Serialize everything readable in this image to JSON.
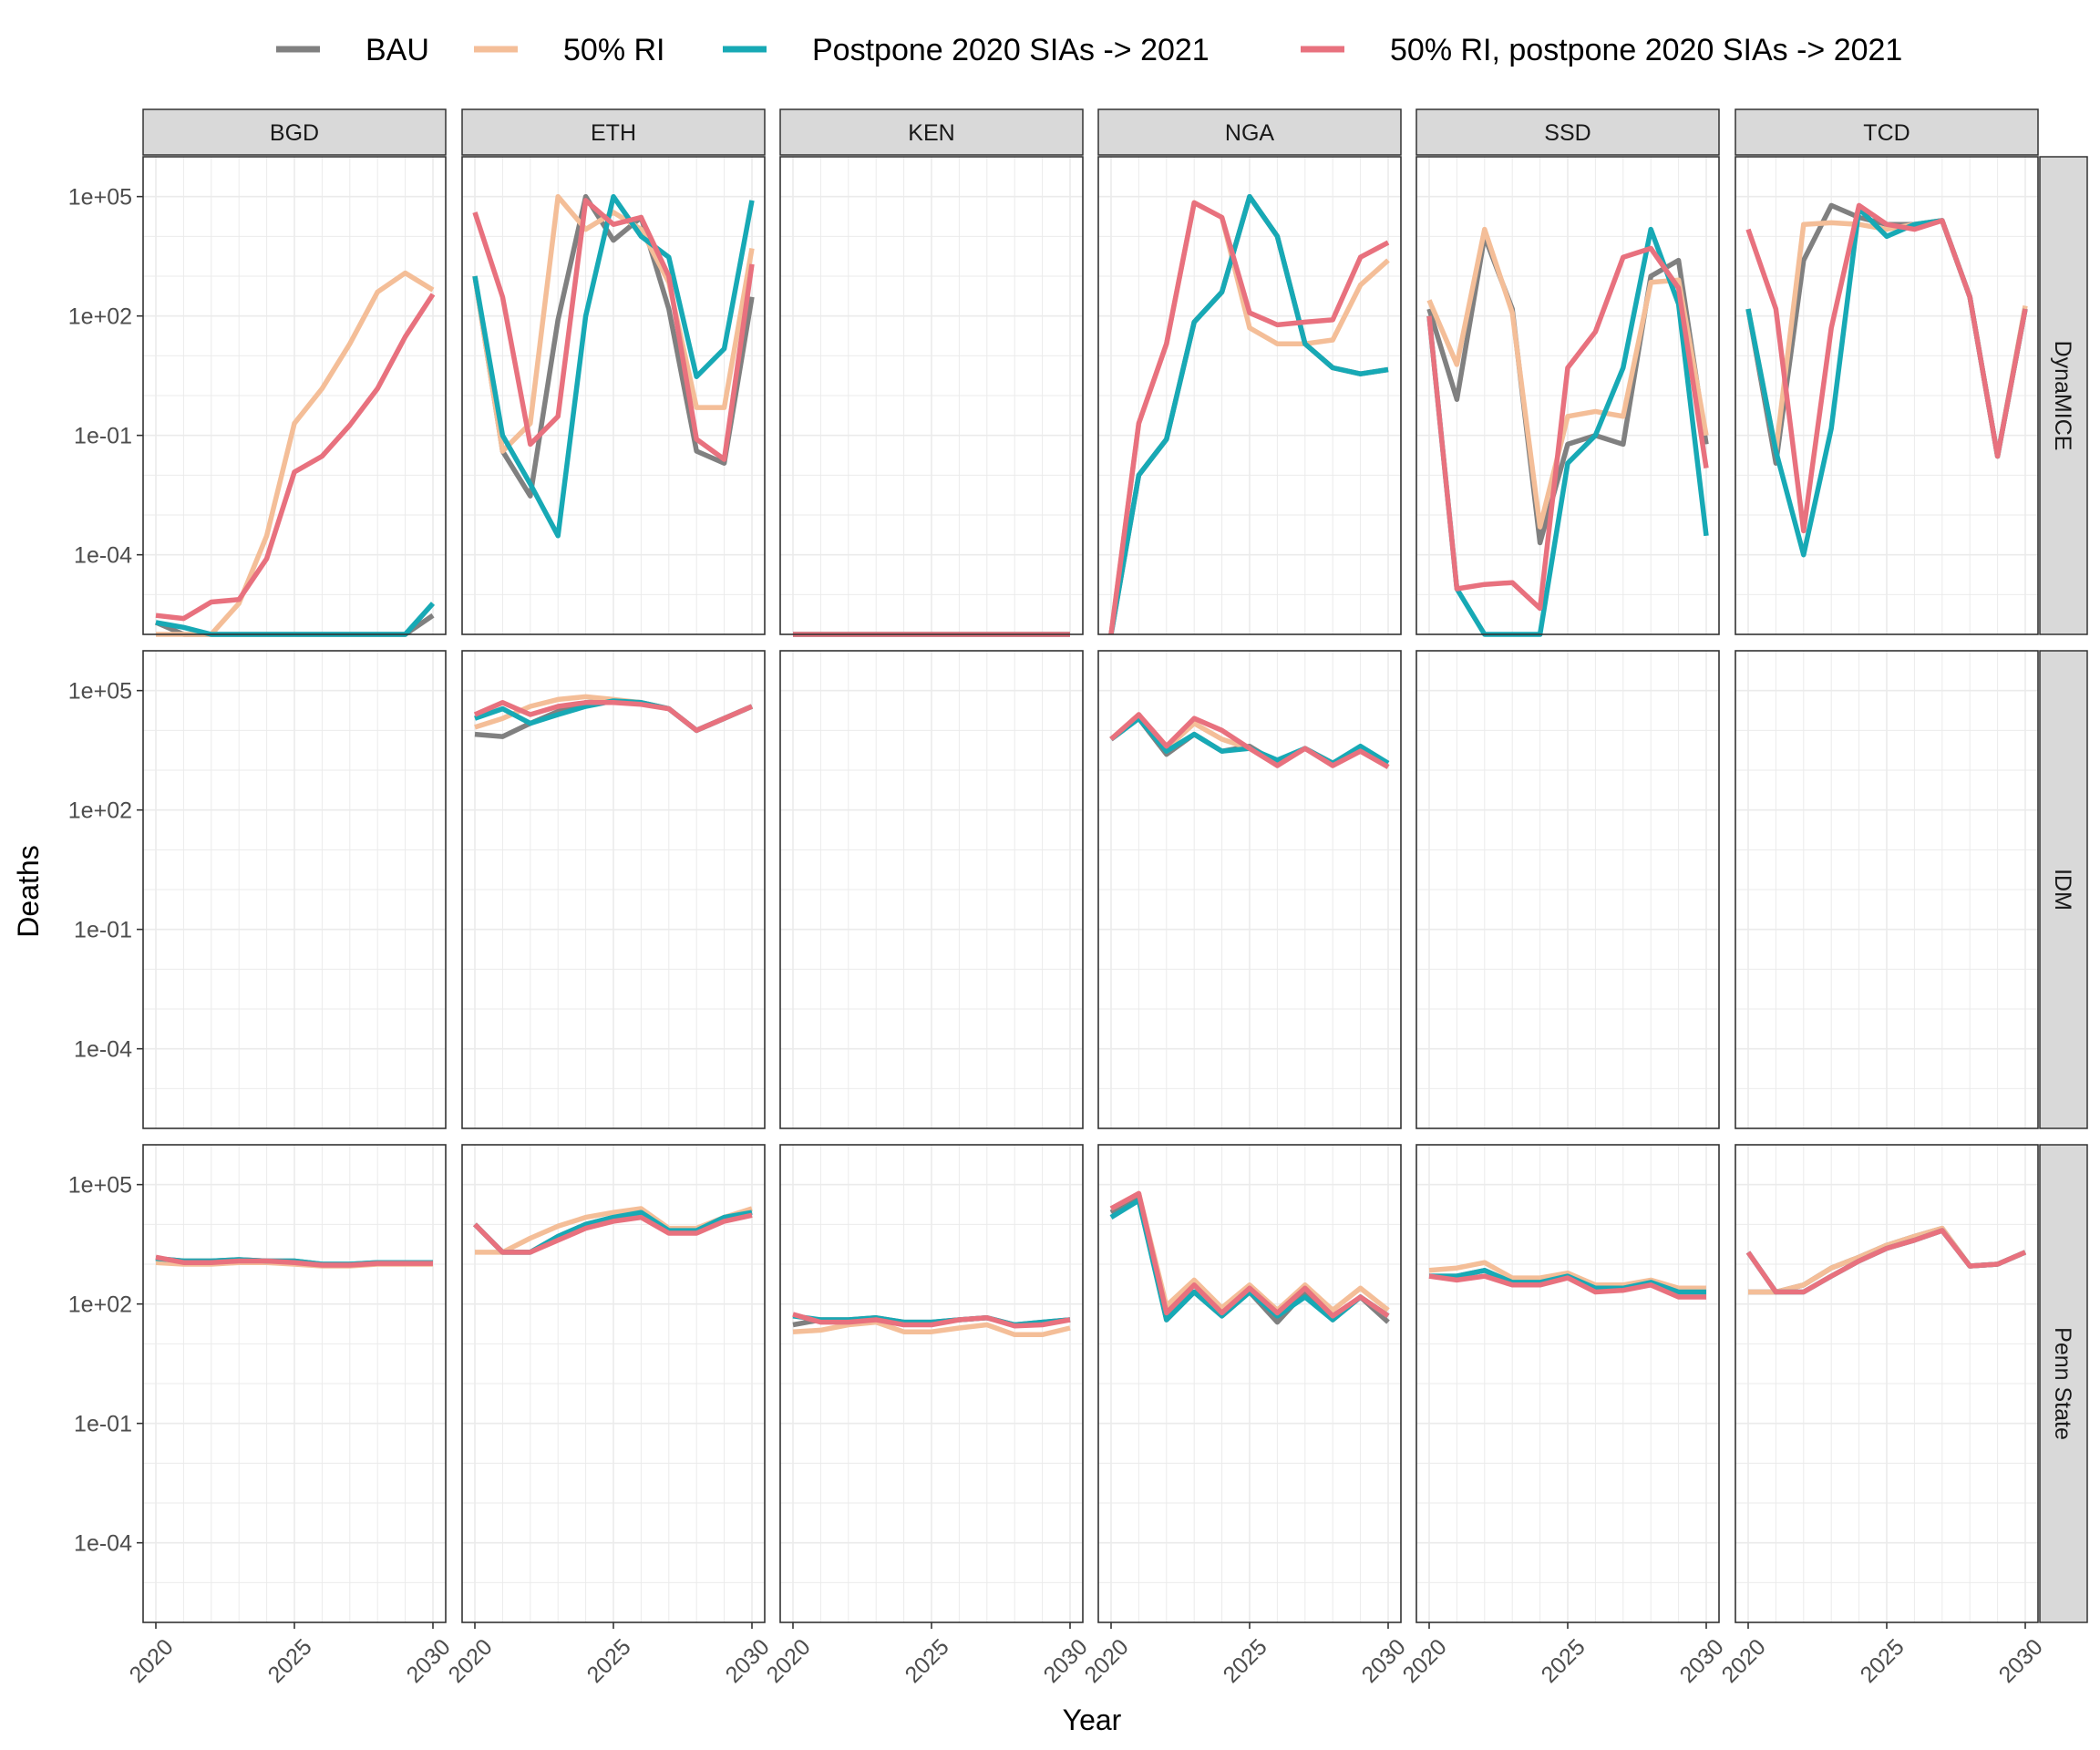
{
  "chart_data": {
    "type": "line",
    "xlabel": "Year",
    "ylabel": "Deaths",
    "y_scale": "log10",
    "ylim": [
      1e-06,
      1000000
    ],
    "y_ticks": [
      {
        "value": 0.0001,
        "label": "1e-04"
      },
      {
        "value": 0.1,
        "label": "1e-01"
      },
      {
        "value": 100,
        "label": "1e+02"
      },
      {
        "value": 100000,
        "label": "1e+05"
      }
    ],
    "xlim": [
      2020,
      2030
    ],
    "x_ticks": [
      {
        "value": 2020,
        "label": "2020"
      },
      {
        "value": 2025,
        "label": "2025"
      },
      {
        "value": 2030,
        "label": "2030"
      }
    ],
    "grid": true,
    "legend_position": "top",
    "series_legend": [
      {
        "key": "BAU",
        "label": "BAU",
        "color": "#808080"
      },
      {
        "key": "RI50",
        "label": "50% RI",
        "color": "#F4BE98"
      },
      {
        "key": "PP",
        "label": "Postpone 2020 SIAs -> 2021",
        "color": "#17A9B5"
      },
      {
        "key": "RI50PP",
        "label": "50% RI, postpone 2020 SIAs -> 2021",
        "color": "#E8717E"
      }
    ],
    "columns": [
      "BGD",
      "ETH",
      "KEN",
      "NGA",
      "SSD",
      "TCD"
    ],
    "rows": [
      "DynaMICE",
      "IDM",
      "Penn State"
    ],
    "x": [
      2020,
      2021,
      2022,
      2023,
      2024,
      2025,
      2026,
      2027,
      2028,
      2029,
      2030
    ],
    "panels": [
      {
        "row": "DynaMICE",
        "col": "BGD",
        "series": {
          "BAU": [
            2e-06,
            1e-06,
            1e-06,
            1e-06,
            1e-06,
            1e-06,
            1e-06,
            1e-06,
            1e-06,
            1e-06,
            3e-06
          ],
          "RI50": [
            1e-06,
            1e-06,
            1e-06,
            6e-06,
            0.0003,
            0.2,
            1.5,
            20,
            400,
            1200,
            450
          ],
          "PP": [
            2e-06,
            1.5e-06,
            1e-06,
            1e-06,
            1e-06,
            1e-06,
            1e-06,
            1e-06,
            1e-06,
            1e-06,
            6e-06
          ],
          "RI50PP": [
            3e-06,
            2.5e-06,
            6.5e-06,
            7.5e-06,
            8e-05,
            0.012,
            0.03,
            0.18,
            1.5,
            30,
            350
          ]
        }
      },
      {
        "row": "DynaMICE",
        "col": "ETH",
        "series": {
          "BAU": [
            1000,
            0.04,
            0.003,
            80,
            100000,
            8000,
            30000,
            150,
            0.04,
            0.02,
            300
          ],
          "RI50": [
            1000,
            0.04,
            0.2,
            100000,
            15000,
            40000,
            15000,
            700,
            0.5,
            0.5,
            5000
          ],
          "PP": [
            1000,
            0.1,
            0.006,
            0.0003,
            100,
            100000,
            10000,
            3000,
            3,
            15,
            80000
          ],
          "RI50PP": [
            40000,
            300,
            0.06,
            0.3,
            80000,
            20000,
            30000,
            1000,
            0.08,
            0.025,
            2000
          ]
        }
      },
      {
        "row": "DynaMICE",
        "col": "KEN",
        "series": {
          "BAU": [
            1e-06,
            1e-06,
            1e-06,
            1e-06,
            1e-06,
            1e-06,
            1e-06,
            1e-06,
            1e-06,
            1e-06,
            1e-06
          ],
          "RI50": [
            1e-06,
            1e-06,
            1e-06,
            1e-06,
            1e-06,
            1e-06,
            1e-06,
            1e-06,
            1e-06,
            1e-06,
            1e-06
          ],
          "PP": [
            1e-06,
            1e-06,
            1e-06,
            1e-06,
            1e-06,
            1e-06,
            1e-06,
            1e-06,
            1e-06,
            1e-06,
            1e-06
          ],
          "RI50PP": [
            1e-06,
            1e-06,
            1e-06,
            1e-06,
            1e-06,
            1e-06,
            1e-06,
            1e-06,
            1e-06,
            1e-06,
            1e-06
          ]
        }
      },
      {
        "row": "DynaMICE",
        "col": "NGA",
        "series": {
          "BAU": [
            1e-06,
            0.01,
            0.08,
            70,
            400,
            100000,
            10000,
            20,
            5,
            3.5,
            4.5
          ],
          "RI50": [
            1e-06,
            0.2,
            20,
            70000,
            30000,
            50,
            20,
            20,
            25,
            600,
            2500
          ],
          "PP": [
            1e-06,
            0.01,
            0.08,
            70,
            400,
            100000,
            10000,
            20,
            5,
            3.5,
            4.5
          ],
          "RI50PP": [
            1e-06,
            0.2,
            20,
            70000,
            30000,
            120,
            60,
            70,
            80,
            3000,
            7000
          ]
        }
      },
      {
        "row": "DynaMICE",
        "col": "SSD",
        "series": {
          "BAU": [
            150,
            0.8,
            10000,
            150,
            0.0002,
            0.06,
            0.1,
            0.06,
            1000,
            2500,
            0.06
          ],
          "RI50": [
            250,
            6,
            15000,
            120,
            0.0005,
            0.3,
            0.4,
            0.3,
            700,
            800,
            0.1
          ],
          "PP": [
            100,
            1.4e-05,
            8e-07,
            6e-07,
            8e-07,
            0.02,
            0.1,
            5,
            15000,
            200,
            0.0003
          ],
          "RI50PP": [
            100,
            1.4e-05,
            1.8e-05,
            2e-05,
            4.5e-06,
            5,
            40,
            3000,
            5000,
            500,
            0.015
          ]
        }
      },
      {
        "row": "DynaMICE",
        "col": "TCD",
        "series": {
          "BAU": [
            150,
            0.02,
            2500,
            60000,
            30000,
            20000,
            20000,
            25000,
            300,
            0.03,
            150
          ],
          "RI50": [
            150,
            0.04,
            20000,
            22000,
            20000,
            15000,
            20000,
            25000,
            300,
            0.03,
            180
          ],
          "PP": [
            150,
            0.04,
            0.0001,
            0.15,
            50000,
            10000,
            20000,
            25000,
            300,
            0.03,
            150
          ],
          "RI50PP": [
            15000,
            150,
            0.0004,
            50,
            60000,
            20000,
            15000,
            25000,
            300,
            0.03,
            150
          ]
        }
      },
      {
        "row": "IDM",
        "col": "ETH",
        "series": {
          "BAU": [
            8000,
            7000,
            15000,
            30000,
            50000,
            55000,
            50000,
            35000,
            10000,
            20000,
            40000
          ],
          "RI50": [
            12000,
            20000,
            40000,
            60000,
            70000,
            60000,
            50000,
            35000,
            10000,
            20000,
            40000
          ],
          "PP": [
            20000,
            35000,
            15000,
            25000,
            40000,
            55000,
            50000,
            35000,
            10000,
            20000,
            40000
          ],
          "RI50PP": [
            25000,
            50000,
            25000,
            40000,
            50000,
            50000,
            45000,
            35000,
            10000,
            20000,
            40000
          ]
        }
      },
      {
        "row": "IDM",
        "col": "NGA",
        "series": {
          "BAU": [
            6000,
            20000,
            2500,
            8000,
            3000,
            4000,
            1500,
            3500,
            1500,
            3500,
            1200
          ],
          "RI50": [
            6000,
            25000,
            3500,
            15000,
            6000,
            3500,
            1500,
            3500,
            1500,
            3500,
            1200
          ],
          "PP": [
            6000,
            20000,
            3000,
            8000,
            3000,
            3500,
            1800,
            3500,
            1500,
            4000,
            1500
          ],
          "RI50PP": [
            6000,
            25000,
            4000,
            20000,
            10000,
            3500,
            1300,
            3500,
            1300,
            3000,
            1200
          ]
        }
      },
      {
        "row": "Penn State",
        "col": "BGD",
        "series": {
          "BAU": [
            1400,
            1200,
            1200,
            1300,
            1200,
            1200,
            1000,
            1000,
            1100,
            1100,
            1100
          ],
          "RI50": [
            1100,
            1000,
            1000,
            1100,
            1100,
            1000,
            900,
            900,
            1000,
            1000,
            1000
          ],
          "PP": [
            1400,
            1200,
            1200,
            1300,
            1200,
            1200,
            1000,
            1000,
            1100,
            1100,
            1100
          ],
          "RI50PP": [
            1500,
            1100,
            1100,
            1200,
            1200,
            1100,
            950,
            950,
            1050,
            1050,
            1050
          ]
        }
      },
      {
        "row": "Penn State",
        "col": "ETH",
        "series": {
          "BAU": [
            10000,
            2000,
            2000,
            5000,
            10000,
            15000,
            20000,
            7000,
            7000,
            15000,
            20000
          ],
          "RI50": [
            2000,
            2000,
            4500,
            9000,
            15000,
            20000,
            25000,
            8000,
            8000,
            15000,
            25000
          ],
          "PP": [
            10000,
            2000,
            2000,
            5000,
            10000,
            15000,
            20000,
            7000,
            7000,
            15000,
            20000
          ],
          "RI50PP": [
            10000,
            2000,
            2000,
            4000,
            8000,
            12000,
            15000,
            6000,
            6000,
            12000,
            17000
          ]
        }
      },
      {
        "row": "Penn State",
        "col": "KEN",
        "series": {
          "BAU": [
            30,
            40,
            40,
            45,
            35,
            35,
            40,
            45,
            30,
            35,
            40
          ],
          "RI50": [
            20,
            22,
            30,
            35,
            20,
            20,
            25,
            30,
            17,
            17,
            25
          ],
          "PP": [
            50,
            40,
            40,
            45,
            35,
            35,
            40,
            45,
            30,
            35,
            40
          ],
          "RI50PP": [
            55,
            35,
            35,
            40,
            30,
            30,
            40,
            45,
            28,
            30,
            40
          ]
        }
      },
      {
        "row": "Penn State",
        "col": "NGA",
        "series": {
          "BAU": [
            20000,
            50000,
            40,
            200,
            50,
            200,
            35,
            200,
            40,
            150,
            35
          ],
          "RI50": [
            25000,
            60000,
            90,
            400,
            80,
            300,
            70,
            300,
            70,
            250,
            70
          ],
          "PP": [
            15000,
            40000,
            40,
            200,
            50,
            200,
            50,
            150,
            40,
            150,
            50
          ],
          "RI50PP": [
            25000,
            60000,
            60,
            300,
            60,
            250,
            60,
            250,
            50,
            150,
            50
          ]
        }
      },
      {
        "row": "Penn State",
        "col": "SSD",
        "series": {
          "BAU": [
            500,
            500,
            700,
            350,
            350,
            500,
            250,
            250,
            350,
            200,
            200
          ],
          "RI50": [
            700,
            800,
            1100,
            450,
            450,
            600,
            300,
            300,
            400,
            250,
            250
          ],
          "PP": [
            500,
            500,
            700,
            350,
            350,
            500,
            250,
            250,
            350,
            200,
            200
          ],
          "RI50PP": [
            500,
            400,
            500,
            300,
            300,
            450,
            200,
            220,
            300,
            150,
            150
          ]
        }
      },
      {
        "row": "Penn State",
        "col": "TCD",
        "series": {
          "BAU": [
            200,
            200,
            300,
            800,
            1500,
            3000,
            5000,
            8000,
            900,
            1000,
            2000
          ],
          "RI50": [
            200,
            200,
            300,
            800,
            1500,
            3000,
            5000,
            8000,
            900,
            1000,
            2000
          ],
          "PP": [
            2000,
            200,
            200,
            500,
            1200,
            2500,
            4000,
            7000,
            900,
            1000,
            2000
          ],
          "RI50PP": [
            2000,
            200,
            200,
            500,
            1200,
            2500,
            4000,
            7000,
            900,
            1000,
            2000
          ]
        }
      }
    ]
  }
}
